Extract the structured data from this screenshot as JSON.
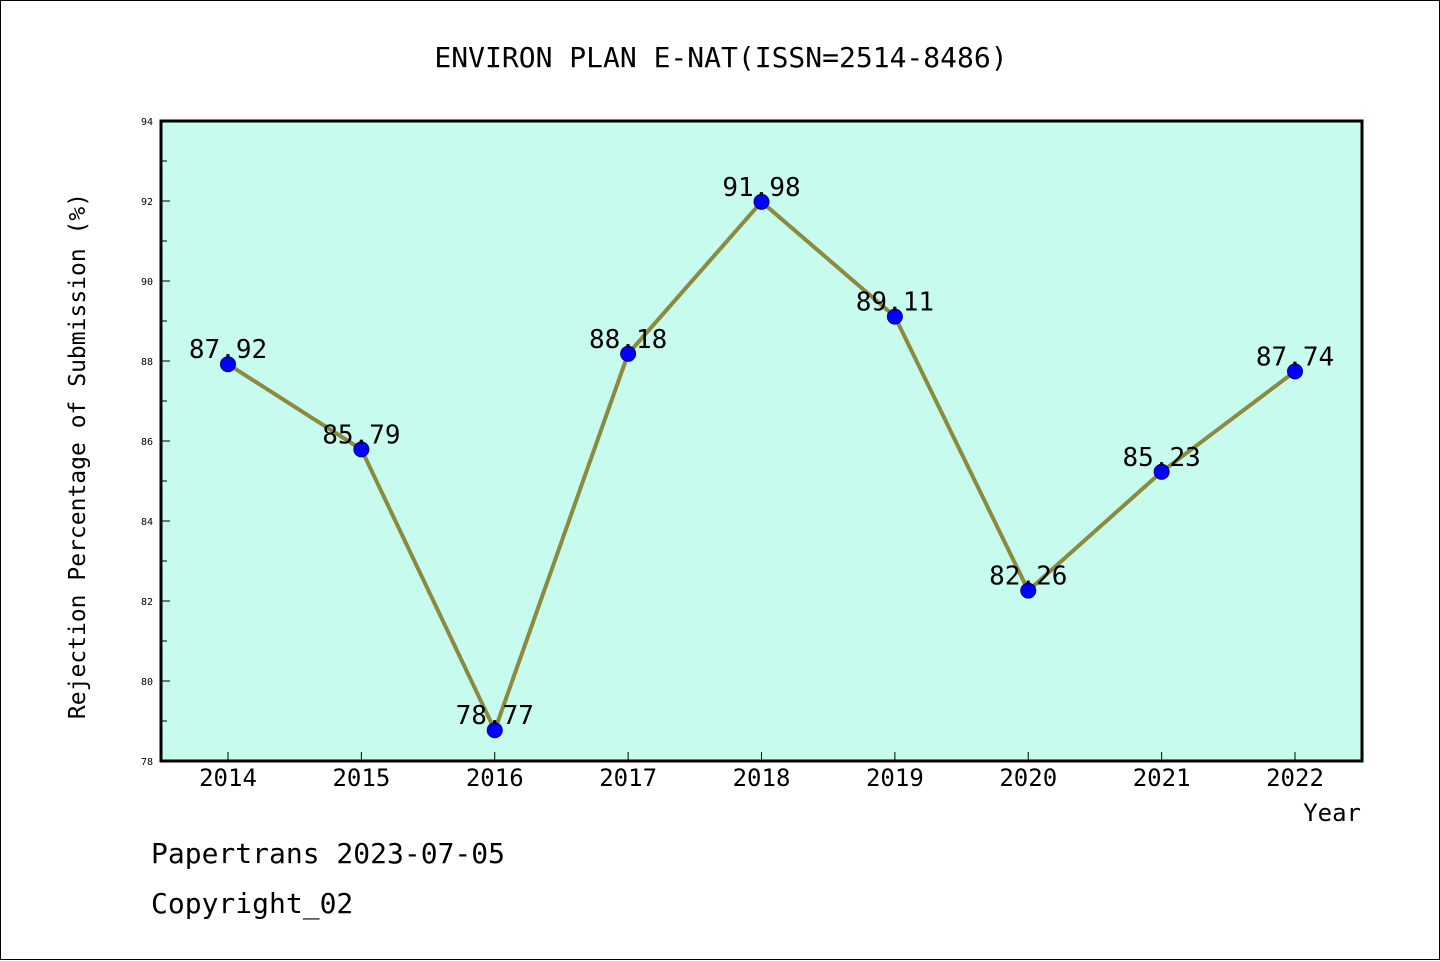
{
  "chart_data": {
    "type": "line",
    "title": "ENVIRON PLAN E-NAT(ISSN=2514-8486)",
    "xlabel": "Year",
    "ylabel": "Rejection Percentage of Submission (%)",
    "categories": [
      "2014",
      "2015",
      "2016",
      "2017",
      "2018",
      "2019",
      "2020",
      "2021",
      "2022"
    ],
    "series": [
      {
        "values": [
          87.92,
          85.79,
          78.77,
          88.18,
          91.98,
          89.11,
          82.26,
          85.23,
          87.74
        ]
      }
    ],
    "data_labels": [
      "87.92",
      "85.79",
      "78.77",
      "88.18",
      "91.98",
      "89.11",
      "82.26",
      "85.23",
      "87.74"
    ],
    "ylim": [
      78,
      94
    ],
    "yticks": [
      "78",
      "80",
      "82",
      "84",
      "86",
      "88",
      "90",
      "92",
      "94"
    ],
    "grid": false,
    "colors": {
      "plot_background": "#c6fbee",
      "line": "#8b8a3e",
      "marker_fill": "#0000ff",
      "marker_edge": "#000080"
    }
  },
  "footer": {
    "source": "Papertrans 2023-07-05",
    "copyright": "Copyright_02"
  }
}
